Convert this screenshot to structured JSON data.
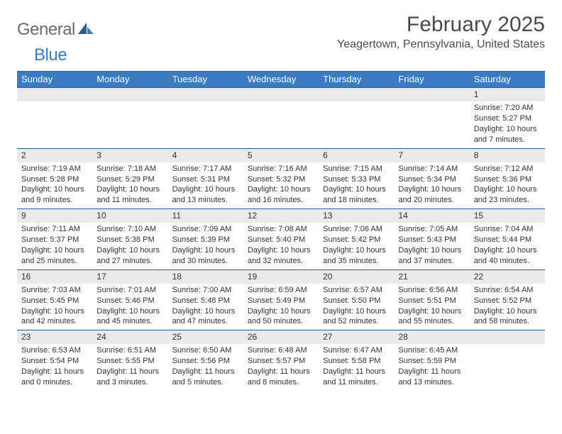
{
  "brand": {
    "text1": "General",
    "text2": "Blue"
  },
  "title": "February 2025",
  "location": "Yeagertown, Pennsylvania, United States",
  "colors": {
    "header_bg": "#3b7bbf",
    "border": "#2f5d87",
    "daynum_bg": "#eaeaea",
    "text": "#333333",
    "logo_gray": "#6b6b6b",
    "logo_blue": "#3b7bbf"
  },
  "weekdays": [
    "Sunday",
    "Monday",
    "Tuesday",
    "Wednesday",
    "Thursday",
    "Friday",
    "Saturday"
  ],
  "weeks": [
    [
      {
        "n": "",
        "sunrise": "",
        "sunset": "",
        "daylight": ""
      },
      {
        "n": "",
        "sunrise": "",
        "sunset": "",
        "daylight": ""
      },
      {
        "n": "",
        "sunrise": "",
        "sunset": "",
        "daylight": ""
      },
      {
        "n": "",
        "sunrise": "",
        "sunset": "",
        "daylight": ""
      },
      {
        "n": "",
        "sunrise": "",
        "sunset": "",
        "daylight": ""
      },
      {
        "n": "",
        "sunrise": "",
        "sunset": "",
        "daylight": ""
      },
      {
        "n": "1",
        "sunrise": "Sunrise: 7:20 AM",
        "sunset": "Sunset: 5:27 PM",
        "daylight": "Daylight: 10 hours and 7 minutes."
      }
    ],
    [
      {
        "n": "2",
        "sunrise": "Sunrise: 7:19 AM",
        "sunset": "Sunset: 5:28 PM",
        "daylight": "Daylight: 10 hours and 9 minutes."
      },
      {
        "n": "3",
        "sunrise": "Sunrise: 7:18 AM",
        "sunset": "Sunset: 5:29 PM",
        "daylight": "Daylight: 10 hours and 11 minutes."
      },
      {
        "n": "4",
        "sunrise": "Sunrise: 7:17 AM",
        "sunset": "Sunset: 5:31 PM",
        "daylight": "Daylight: 10 hours and 13 minutes."
      },
      {
        "n": "5",
        "sunrise": "Sunrise: 7:16 AM",
        "sunset": "Sunset: 5:32 PM",
        "daylight": "Daylight: 10 hours and 16 minutes."
      },
      {
        "n": "6",
        "sunrise": "Sunrise: 7:15 AM",
        "sunset": "Sunset: 5:33 PM",
        "daylight": "Daylight: 10 hours and 18 minutes."
      },
      {
        "n": "7",
        "sunrise": "Sunrise: 7:14 AM",
        "sunset": "Sunset: 5:34 PM",
        "daylight": "Daylight: 10 hours and 20 minutes."
      },
      {
        "n": "8",
        "sunrise": "Sunrise: 7:12 AM",
        "sunset": "Sunset: 5:36 PM",
        "daylight": "Daylight: 10 hours and 23 minutes."
      }
    ],
    [
      {
        "n": "9",
        "sunrise": "Sunrise: 7:11 AM",
        "sunset": "Sunset: 5:37 PM",
        "daylight": "Daylight: 10 hours and 25 minutes."
      },
      {
        "n": "10",
        "sunrise": "Sunrise: 7:10 AM",
        "sunset": "Sunset: 5:38 PM",
        "daylight": "Daylight: 10 hours and 27 minutes."
      },
      {
        "n": "11",
        "sunrise": "Sunrise: 7:09 AM",
        "sunset": "Sunset: 5:39 PM",
        "daylight": "Daylight: 10 hours and 30 minutes."
      },
      {
        "n": "12",
        "sunrise": "Sunrise: 7:08 AM",
        "sunset": "Sunset: 5:40 PM",
        "daylight": "Daylight: 10 hours and 32 minutes."
      },
      {
        "n": "13",
        "sunrise": "Sunrise: 7:06 AM",
        "sunset": "Sunset: 5:42 PM",
        "daylight": "Daylight: 10 hours and 35 minutes."
      },
      {
        "n": "14",
        "sunrise": "Sunrise: 7:05 AM",
        "sunset": "Sunset: 5:43 PM",
        "daylight": "Daylight: 10 hours and 37 minutes."
      },
      {
        "n": "15",
        "sunrise": "Sunrise: 7:04 AM",
        "sunset": "Sunset: 5:44 PM",
        "daylight": "Daylight: 10 hours and 40 minutes."
      }
    ],
    [
      {
        "n": "16",
        "sunrise": "Sunrise: 7:03 AM",
        "sunset": "Sunset: 5:45 PM",
        "daylight": "Daylight: 10 hours and 42 minutes."
      },
      {
        "n": "17",
        "sunrise": "Sunrise: 7:01 AM",
        "sunset": "Sunset: 5:46 PM",
        "daylight": "Daylight: 10 hours and 45 minutes."
      },
      {
        "n": "18",
        "sunrise": "Sunrise: 7:00 AM",
        "sunset": "Sunset: 5:48 PM",
        "daylight": "Daylight: 10 hours and 47 minutes."
      },
      {
        "n": "19",
        "sunrise": "Sunrise: 6:59 AM",
        "sunset": "Sunset: 5:49 PM",
        "daylight": "Daylight: 10 hours and 50 minutes."
      },
      {
        "n": "20",
        "sunrise": "Sunrise: 6:57 AM",
        "sunset": "Sunset: 5:50 PM",
        "daylight": "Daylight: 10 hours and 52 minutes."
      },
      {
        "n": "21",
        "sunrise": "Sunrise: 6:56 AM",
        "sunset": "Sunset: 5:51 PM",
        "daylight": "Daylight: 10 hours and 55 minutes."
      },
      {
        "n": "22",
        "sunrise": "Sunrise: 6:54 AM",
        "sunset": "Sunset: 5:52 PM",
        "daylight": "Daylight: 10 hours and 58 minutes."
      }
    ],
    [
      {
        "n": "23",
        "sunrise": "Sunrise: 6:53 AM",
        "sunset": "Sunset: 5:54 PM",
        "daylight": "Daylight: 11 hours and 0 minutes."
      },
      {
        "n": "24",
        "sunrise": "Sunrise: 6:51 AM",
        "sunset": "Sunset: 5:55 PM",
        "daylight": "Daylight: 11 hours and 3 minutes."
      },
      {
        "n": "25",
        "sunrise": "Sunrise: 6:50 AM",
        "sunset": "Sunset: 5:56 PM",
        "daylight": "Daylight: 11 hours and 5 minutes."
      },
      {
        "n": "26",
        "sunrise": "Sunrise: 6:48 AM",
        "sunset": "Sunset: 5:57 PM",
        "daylight": "Daylight: 11 hours and 8 minutes."
      },
      {
        "n": "27",
        "sunrise": "Sunrise: 6:47 AM",
        "sunset": "Sunset: 5:58 PM",
        "daylight": "Daylight: 11 hours and 11 minutes."
      },
      {
        "n": "28",
        "sunrise": "Sunrise: 6:45 AM",
        "sunset": "Sunset: 5:59 PM",
        "daylight": "Daylight: 11 hours and 13 minutes."
      },
      {
        "n": "",
        "sunrise": "",
        "sunset": "",
        "daylight": ""
      }
    ]
  ]
}
